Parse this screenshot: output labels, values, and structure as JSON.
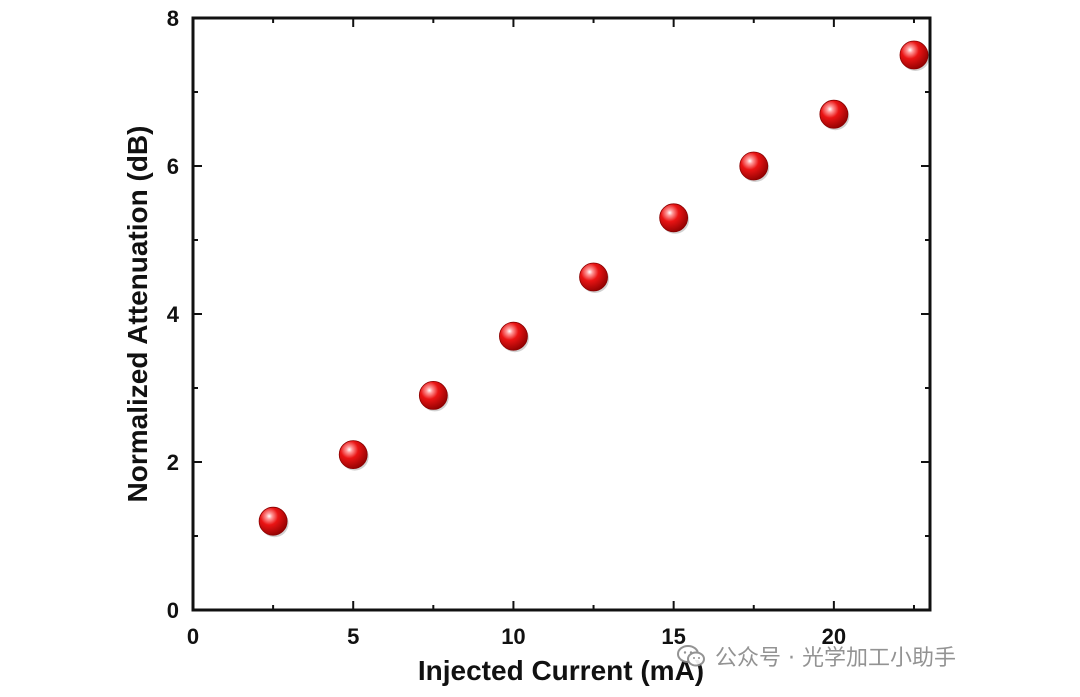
{
  "chart_data": {
    "type": "scatter",
    "title": "",
    "xlabel": "Injected Current (mA)",
    "ylabel": "Normalized Attenuation (dB)",
    "xlim": [
      0,
      23
    ],
    "ylim": [
      0,
      8
    ],
    "x_ticks": [
      0,
      5,
      10,
      15,
      20
    ],
    "y_ticks": [
      0,
      2,
      4,
      6,
      8
    ],
    "x_tick_labels": [
      "0",
      "5",
      "10",
      "15",
      "20"
    ],
    "y_tick_labels": [
      "0",
      "2",
      "4",
      "6",
      "8"
    ],
    "grid": false,
    "legend": "none",
    "series": [
      {
        "name": "Normalized Attenuation",
        "color": "#e00000",
        "x": [
          2.5,
          5,
          7.5,
          10,
          12.5,
          15,
          17.5,
          20,
          22.5
        ],
        "y": [
          1.2,
          2.1,
          2.9,
          3.7,
          4.5,
          5.3,
          6.0,
          6.7,
          7.5
        ]
      }
    ]
  },
  "watermark": {
    "text": "公众号 · 光学加工小助手",
    "icon": "wechat-icon"
  }
}
